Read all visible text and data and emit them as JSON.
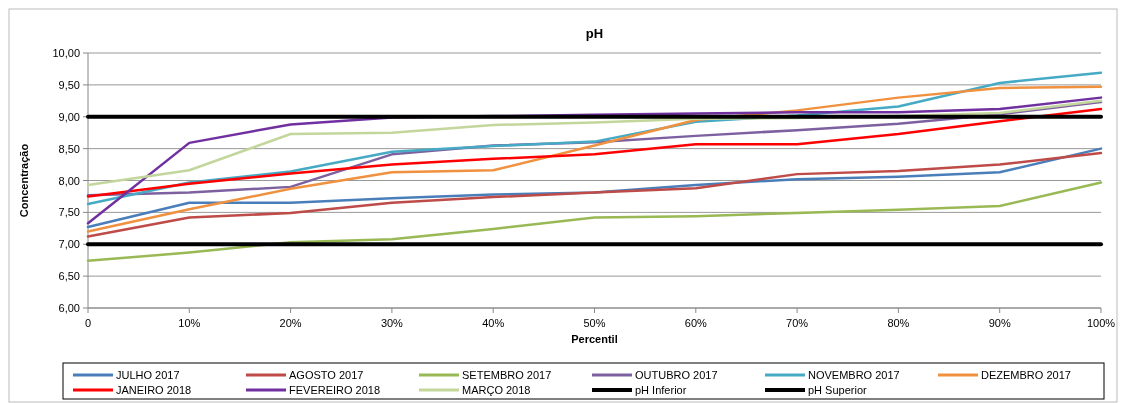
{
  "chart_data": {
    "type": "line",
    "title": "pH",
    "xlabel": "Percentil",
    "ylabel": "Concentração",
    "categories": [
      "0",
      "10%",
      "20%",
      "30%",
      "40%",
      "50%",
      "60%",
      "70%",
      "80%",
      "90%",
      "100%"
    ],
    "ylim": [
      6,
      10
    ],
    "yticks": [
      {
        "value": 6,
        "label": "6,00"
      },
      {
        "value": 6.5,
        "label": "6,50"
      },
      {
        "value": 7,
        "label": "7,00"
      },
      {
        "value": 7.5,
        "label": "7,50"
      },
      {
        "value": 8,
        "label": "8,00"
      },
      {
        "value": 8.5,
        "label": "8,50"
      },
      {
        "value": 9,
        "label": "9,00"
      },
      {
        "value": 9.5,
        "label": "9,50"
      },
      {
        "value": 10,
        "label": "10,00"
      }
    ],
    "grid": "y",
    "legend": "bottom",
    "marker": "none",
    "line_style": "solid",
    "series": [
      {
        "name": "JULHO 2017",
        "color": "#4a7ebb",
        "values": [
          7.27,
          7.65,
          7.65,
          7.72,
          7.78,
          7.81,
          7.93,
          8.02,
          8.06,
          8.13,
          8.5
        ]
      },
      {
        "name": "AGOSTO 2017",
        "color": "#be4b48",
        "values": [
          7.12,
          7.42,
          7.49,
          7.65,
          7.74,
          7.81,
          7.88,
          8.1,
          8.15,
          8.25,
          8.43
        ]
      },
      {
        "name": "SETEMBRO 2017",
        "color": "#98b954",
        "values": [
          6.74,
          6.87,
          7.03,
          7.08,
          7.24,
          7.42,
          7.44,
          7.49,
          7.54,
          7.6,
          7.97
        ]
      },
      {
        "name": "OUTUBRO 2017",
        "color": "#7d60a0",
        "values": [
          7.77,
          7.81,
          7.9,
          8.41,
          8.55,
          8.6,
          8.7,
          8.79,
          8.89,
          9.04,
          9.23
        ]
      },
      {
        "name": "NOVEMBRO 2017",
        "color": "#46aac5",
        "values": [
          7.63,
          7.97,
          8.14,
          8.45,
          8.54,
          8.61,
          8.92,
          9.02,
          9.16,
          9.53,
          9.69
        ]
      },
      {
        "name": "DEZEMBRO 2017",
        "color": "#f0913f",
        "values": [
          7.2,
          7.55,
          7.87,
          8.13,
          8.16,
          8.55,
          8.95,
          9.1,
          9.3,
          9.45,
          9.47
        ]
      },
      {
        "name": "JANEIRO 2018",
        "color": "#ff0000",
        "values": [
          7.75,
          7.95,
          8.11,
          8.25,
          8.34,
          8.41,
          8.57,
          8.57,
          8.73,
          8.93,
          9.12
        ]
      },
      {
        "name": "FEVEREIRO 2018",
        "color": "#7030a0",
        "values": [
          7.33,
          8.59,
          8.88,
          8.99,
          9.01,
          9.03,
          9.05,
          9.07,
          9.07,
          9.12,
          9.3
        ]
      },
      {
        "name": "MARÇO 2018",
        "color": "#c3d69b",
        "values": [
          7.93,
          8.16,
          8.73,
          8.75,
          8.87,
          8.91,
          8.97,
          8.98,
          9.01,
          9.06,
          9.25
        ]
      },
      {
        "name": "pH Inferior",
        "color": "#000000",
        "values": [
          7,
          7,
          7,
          7,
          7,
          7,
          7,
          7,
          7,
          7,
          7
        ]
      },
      {
        "name": "pH Superior",
        "color": "#000000",
        "values": [
          9,
          9,
          9,
          9,
          9,
          9,
          9,
          9,
          9,
          9,
          9
        ]
      }
    ]
  }
}
